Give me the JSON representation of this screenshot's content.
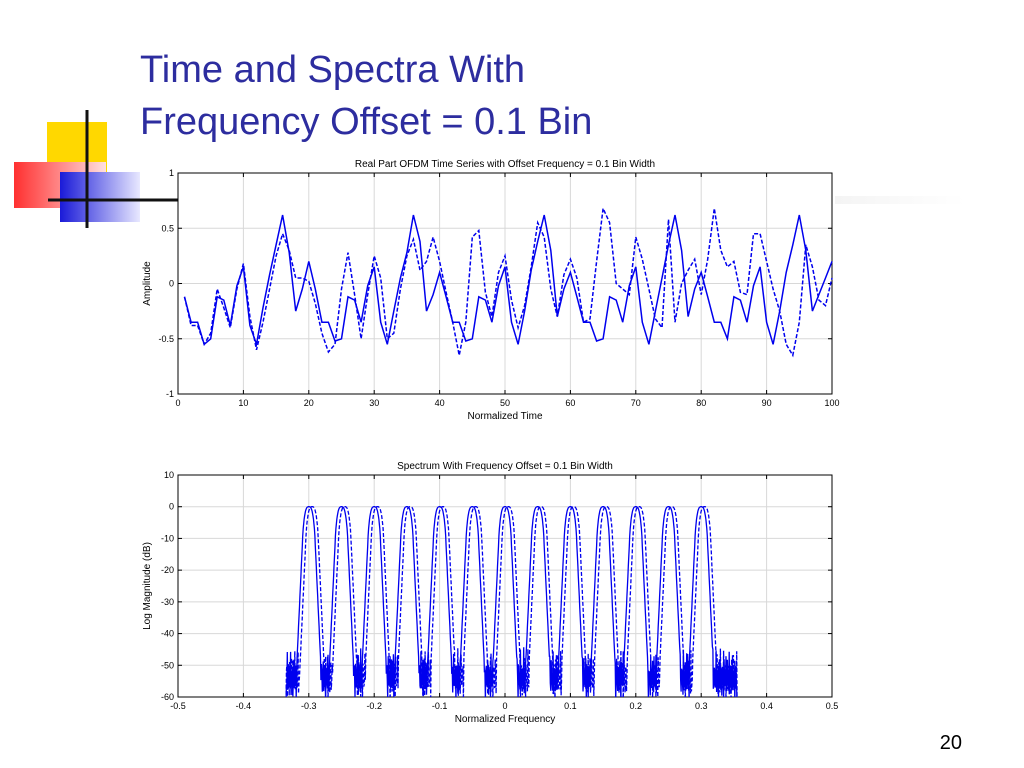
{
  "slide": {
    "title_line1": "Time and Spectra With",
    "title_line2": "Frequency Offset = 0.1 Bin",
    "page_number": "20",
    "title_color": "#2d2d9f",
    "line_color": "#0000ee"
  },
  "chart_data": [
    {
      "type": "line",
      "title": "Real Part OFDM Time Series with Offset Frequency = 0.1 Bin Width",
      "xlabel": "Normalized Time",
      "ylabel": "Amplitude",
      "xlim": [
        0,
        100
      ],
      "ylim": [
        -1,
        1
      ],
      "xticks": [
        0,
        10,
        20,
        30,
        40,
        50,
        60,
        70,
        80,
        90,
        100
      ],
      "yticks": [
        -1,
        -0.5,
        0,
        0.5,
        1
      ],
      "xtick_labels": [
        "0",
        "10",
        "20",
        "30",
        "40",
        "50",
        "60",
        "70",
        "80",
        "90",
        "100"
      ],
      "ytick_labels": [
        "-1",
        "-0.5",
        "0",
        "0.5",
        "1"
      ],
      "grid": true,
      "x": [
        1,
        2,
        3,
        4,
        5,
        6,
        7,
        8,
        9,
        10,
        11,
        12,
        13,
        14,
        15,
        16,
        17,
        18,
        19,
        20,
        21,
        22,
        23,
        24,
        25,
        26,
        27,
        28,
        29,
        30,
        31,
        32,
        33,
        34,
        35,
        36,
        37,
        38,
        39,
        40,
        41,
        42,
        43,
        44,
        45,
        46,
        47,
        48,
        49,
        50,
        51,
        52,
        53,
        54,
        55,
        56,
        57,
        58,
        59,
        60,
        61,
        62,
        63,
        64,
        65,
        66,
        67,
        68,
        69,
        70,
        71,
        72,
        73,
        74,
        75,
        76,
        77,
        78,
        79,
        80,
        81,
        82,
        83,
        84,
        85,
        86,
        87,
        88,
        89,
        90,
        91,
        92,
        93,
        94,
        95,
        96,
        97,
        98,
        99,
        100
      ],
      "series": [
        {
          "style": "solid",
          "values": [
            -0.12,
            -0.35,
            -0.35,
            -0.55,
            -0.5,
            -0.12,
            -0.15,
            -0.38,
            -0.02,
            0.15,
            -0.38,
            -0.55,
            -0.22,
            0.08,
            0.35,
            0.62,
            0.28,
            -0.25,
            -0.05,
            0.2,
            -0.05,
            -0.35,
            -0.35,
            -0.52,
            -0.5,
            -0.12,
            -0.15,
            -0.35,
            -0.02,
            0.15,
            -0.35,
            -0.55,
            -0.25,
            0.05,
            0.28,
            0.62,
            0.38,
            -0.25,
            -0.1,
            0.1,
            -0.12,
            -0.35,
            -0.35,
            -0.52,
            -0.5,
            -0.12,
            -0.15,
            -0.35,
            -0.02,
            0.15,
            -0.35,
            -0.55,
            -0.25,
            0.12,
            0.38,
            0.62,
            0.3,
            -0.3,
            -0.05,
            0.1,
            -0.12,
            -0.35,
            -0.35,
            -0.52,
            -0.5,
            -0.12,
            -0.15,
            -0.35,
            -0.02,
            0.15,
            -0.35,
            -0.55,
            -0.25,
            0.05,
            0.35,
            0.62,
            0.3,
            -0.3,
            -0.05,
            0.1,
            -0.12,
            -0.35,
            -0.35,
            -0.5,
            -0.12,
            -0.15,
            -0.35,
            -0.02,
            0.15,
            -0.35,
            -0.55,
            -0.25,
            0.1,
            0.35,
            0.62,
            0.3,
            -0.25,
            -0.1,
            0.05,
            0.2
          ]
        },
        {
          "style": "dashed",
          "values": [
            -0.12,
            -0.38,
            -0.38,
            -0.55,
            -0.45,
            -0.05,
            -0.22,
            -0.4,
            -0.05,
            0.18,
            -0.3,
            -0.6,
            -0.35,
            -0.05,
            0.25,
            0.45,
            0.3,
            0.05,
            0.05,
            0.02,
            -0.18,
            -0.45,
            -0.62,
            -0.55,
            -0.05,
            0.28,
            -0.1,
            -0.5,
            -0.1,
            0.25,
            0.05,
            -0.5,
            -0.45,
            -0.05,
            0.25,
            0.4,
            0.12,
            0.2,
            0.42,
            0.2,
            -0.08,
            -0.35,
            -0.65,
            -0.35,
            0.42,
            0.48,
            -0.08,
            -0.3,
            0.1,
            0.25,
            -0.15,
            -0.4,
            -0.2,
            0.15,
            0.55,
            0.42,
            -0.05,
            -0.3,
            0.08,
            0.22,
            0.05,
            -0.35,
            -0.32,
            0.2,
            0.68,
            0.55,
            0.0,
            -0.05,
            -0.1,
            0.42,
            0.22,
            -0.05,
            -0.32,
            -0.4,
            0.58,
            -0.35,
            0.0,
            0.12,
            0.22,
            -0.1,
            0.22,
            0.68,
            0.3,
            0.15,
            0.2,
            -0.08,
            -0.1,
            0.45,
            0.45,
            0.2,
            -0.05,
            -0.25,
            -0.55,
            -0.65,
            -0.35,
            0.35,
            0.15,
            -0.15,
            -0.2,
            0.05
          ]
        }
      ]
    },
    {
      "type": "line",
      "title": "Spectrum With Frequency Offset = 0.1 Bin Width",
      "xlabel": "Normalized Frequency",
      "ylabel": "Log Magnitude (dB)",
      "xlim": [
        -0.5,
        0.5
      ],
      "ylim": [
        -60,
        10
      ],
      "xticks": [
        -0.5,
        -0.4,
        -0.3,
        -0.2,
        -0.1,
        0,
        0.1,
        0.2,
        0.3,
        0.4,
        0.5
      ],
      "yticks": [
        -60,
        -50,
        -40,
        -30,
        -20,
        -10,
        0,
        10
      ],
      "xtick_labels": [
        "-0.5",
        "-0.4",
        "-0.3",
        "-0.2",
        "-0.1",
        "0",
        "0.1",
        "0.2",
        "0.3",
        "0.4",
        "0.5"
      ],
      "ytick_labels": [
        "-60",
        "-50",
        "-40",
        "-30",
        "-20",
        "-10",
        "0",
        "10"
      ],
      "grid": true,
      "peak_centers": [
        -0.3,
        -0.25,
        -0.2,
        -0.15,
        -0.1,
        -0.05,
        0,
        0.05,
        0.1,
        0.15,
        0.2,
        0.25,
        0.3
      ],
      "peak_level": 0,
      "floor_level": -50,
      "series": [
        {
          "style": "solid",
          "offset": 0
        },
        {
          "style": "dashed",
          "offset": 0.005
        }
      ]
    }
  ]
}
